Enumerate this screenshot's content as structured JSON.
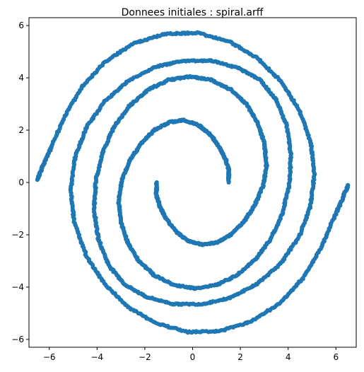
{
  "chart_data": {
    "type": "scatter",
    "title": "Donnees initiales : spiral.arff",
    "xlabel": "",
    "ylabel": "",
    "xlim": [
      -6.85,
      6.85
    ],
    "ylim": [
      -6.3,
      6.3
    ],
    "xticks": [
      -6,
      -4,
      -2,
      0,
      2,
      4,
      6
    ],
    "yticks": [
      -6,
      -4,
      -2,
      0,
      2,
      4,
      6
    ],
    "xtick_labels": [
      "−6",
      "−4",
      "−2",
      "0",
      "2",
      "4",
      "6"
    ],
    "ytick_labels": [
      "−6",
      "−4",
      "−2",
      "0",
      "2",
      "4",
      "6"
    ],
    "grid": false,
    "marker_color": "#1f77b4",
    "series": [
      {
        "points_xy": [
          [
            -1.5,
            0.0
          ],
          [
            -1.52,
            -0.46
          ],
          [
            -1.38,
            -0.9
          ],
          [
            -1.12,
            -1.35
          ],
          [
            -0.7,
            -1.88
          ],
          [
            -0.2,
            -2.22
          ],
          [
            0.4,
            -2.38
          ],
          [
            1.0,
            -2.3
          ],
          [
            1.6,
            -2.0
          ],
          [
            2.15,
            -1.5
          ],
          [
            2.62,
            -0.85
          ],
          [
            2.96,
            -0.1
          ],
          [
            3.1,
            0.7
          ],
          [
            3.0,
            1.5
          ],
          [
            2.72,
            2.3
          ],
          [
            2.25,
            3.0
          ],
          [
            1.6,
            3.55
          ],
          [
            0.78,
            3.92
          ],
          [
            -0.1,
            4.05
          ],
          [
            -1.0,
            3.92
          ],
          [
            -1.85,
            3.55
          ],
          [
            -2.62,
            2.95
          ],
          [
            -3.28,
            2.15
          ],
          [
            -3.75,
            1.2
          ],
          [
            -4.05,
            0.1
          ],
          [
            -4.12,
            -1.05
          ],
          [
            -3.95,
            -2.15
          ],
          [
            -3.52,
            -3.15
          ],
          [
            -2.82,
            -3.92
          ],
          [
            -1.92,
            -4.38
          ],
          [
            -0.8,
            -4.65
          ],
          [
            0.4,
            -4.65
          ],
          [
            1.55,
            -4.42
          ],
          [
            2.7,
            -3.88
          ],
          [
            3.68,
            -3.1
          ],
          [
            4.45,
            -2.1
          ],
          [
            4.92,
            -0.95
          ],
          [
            5.1,
            0.3
          ],
          [
            4.95,
            1.55
          ],
          [
            4.45,
            2.8
          ],
          [
            3.72,
            3.85
          ],
          [
            2.72,
            4.75
          ],
          [
            1.55,
            5.38
          ],
          [
            0.2,
            5.72
          ],
          [
            -1.15,
            5.68
          ],
          [
            -2.45,
            5.32
          ],
          [
            -3.65,
            4.62
          ],
          [
            -4.6,
            3.68
          ],
          [
            -5.35,
            2.55
          ],
          [
            -5.9,
            1.38
          ],
          [
            -6.28,
            0.62
          ],
          [
            -6.5,
            0.1
          ]
        ]
      },
      {
        "points_xy": [
          [
            1.5,
            0.0
          ],
          [
            1.52,
            0.46
          ],
          [
            1.38,
            0.9
          ],
          [
            1.12,
            1.35
          ],
          [
            0.7,
            1.88
          ],
          [
            0.2,
            2.22
          ],
          [
            -0.4,
            2.38
          ],
          [
            -1.0,
            2.3
          ],
          [
            -1.6,
            2.0
          ],
          [
            -2.15,
            1.5
          ],
          [
            -2.62,
            0.85
          ],
          [
            -2.96,
            0.1
          ],
          [
            -3.1,
            -0.7
          ],
          [
            -3.0,
            -1.5
          ],
          [
            -2.72,
            -2.3
          ],
          [
            -2.25,
            -3.0
          ],
          [
            -1.6,
            -3.55
          ],
          [
            -0.78,
            -3.92
          ],
          [
            0.1,
            -4.05
          ],
          [
            1.0,
            -3.92
          ],
          [
            1.85,
            -3.55
          ],
          [
            2.62,
            -2.95
          ],
          [
            3.28,
            -2.15
          ],
          [
            3.75,
            -1.2
          ],
          [
            4.05,
            -0.1
          ],
          [
            4.12,
            1.05
          ],
          [
            3.95,
            2.15
          ],
          [
            3.52,
            3.15
          ],
          [
            2.82,
            3.92
          ],
          [
            1.92,
            4.38
          ],
          [
            0.8,
            4.65
          ],
          [
            -0.4,
            4.65
          ],
          [
            -1.55,
            4.42
          ],
          [
            -2.7,
            3.88
          ],
          [
            -3.68,
            3.1
          ],
          [
            -4.45,
            2.1
          ],
          [
            -4.92,
            0.95
          ],
          [
            -5.1,
            -0.3
          ],
          [
            -4.95,
            -1.55
          ],
          [
            -4.45,
            -2.8
          ],
          [
            -3.72,
            -3.85
          ],
          [
            -2.72,
            -4.75
          ],
          [
            -1.55,
            -5.38
          ],
          [
            -0.2,
            -5.72
          ],
          [
            1.15,
            -5.68
          ],
          [
            2.45,
            -5.32
          ],
          [
            3.65,
            -4.62
          ],
          [
            4.6,
            -3.68
          ],
          [
            5.35,
            -2.55
          ],
          [
            5.9,
            -1.38
          ],
          [
            6.28,
            -0.62
          ],
          [
            6.5,
            -0.1
          ]
        ]
      }
    ]
  }
}
